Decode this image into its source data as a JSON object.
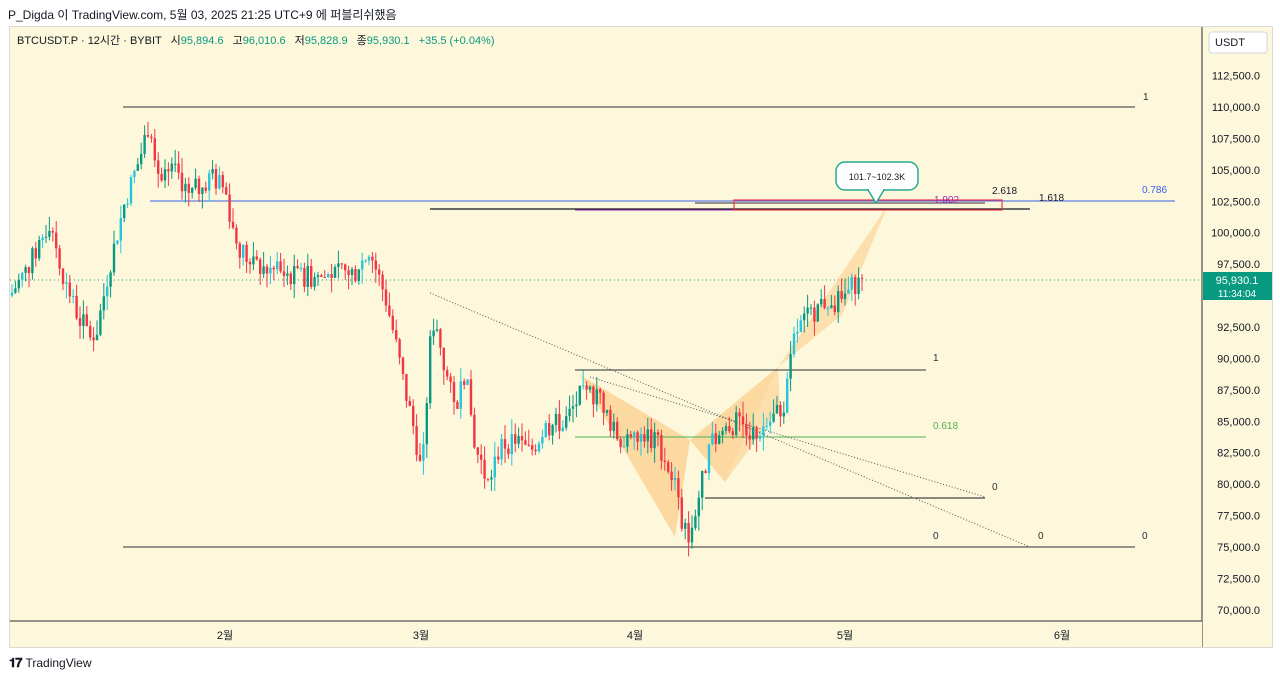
{
  "header": {
    "publish_line": "P_Digda 이 TradingView.com, 5월 03, 2025 21:25 UTC+9 에 퍼블리쉬했음"
  },
  "legend": {
    "symbol": "BTCUSDT.P · 12시간 · BYBIT",
    "open_label": "시",
    "open": "95,894.6",
    "high_label": "고",
    "high": "96,010.6",
    "low_label": "저",
    "low": "95,828.9",
    "close_label": "종",
    "close": "95,930.1",
    "change": "+35.5 (+0.04%)"
  },
  "price_axis": {
    "currency": "USDT",
    "ticks": [
      "112,500.0",
      "110,000.0",
      "107,500.0",
      "105,000.0",
      "102,500.0",
      "100,000.0",
      "97,500.0",
      "92,500.0",
      "90,000.0",
      "87,500.0",
      "85,000.0",
      "82,500.0",
      "80,000.0",
      "77,500.0",
      "75,000.0",
      "72,500.0",
      "70,000.0"
    ],
    "last_price": "95,930.1",
    "countdown": "11:34:04"
  },
  "time_axis": {
    "ticks": [
      "2월",
      "3월",
      "4월",
      "5월",
      "6월"
    ]
  },
  "annotations": {
    "target_callout": "101.7~102.3K",
    "fib_1902": "1.902",
    "fib_2618": "2.618",
    "fib_1618": "1.618",
    "fib_0786": "0.786",
    "level_1_top": "1",
    "level_1_mid": "1",
    "level_0618": "0.618",
    "level_0_a": "0",
    "level_0_b": "0",
    "level_0_c": "0",
    "level_0_d": "0"
  },
  "colors": {
    "background": "#fdf8dc",
    "up": "#089981",
    "up_alt": "#26c6da",
    "down": "#f23645",
    "pattern_fill": "#fbc070",
    "fib_blue": "#3761e6",
    "fib_green": "#4caf50",
    "fib_purple": "#9c27b0",
    "callout": "#22ab94"
  },
  "footer": {
    "brand": "TradingView"
  }
}
